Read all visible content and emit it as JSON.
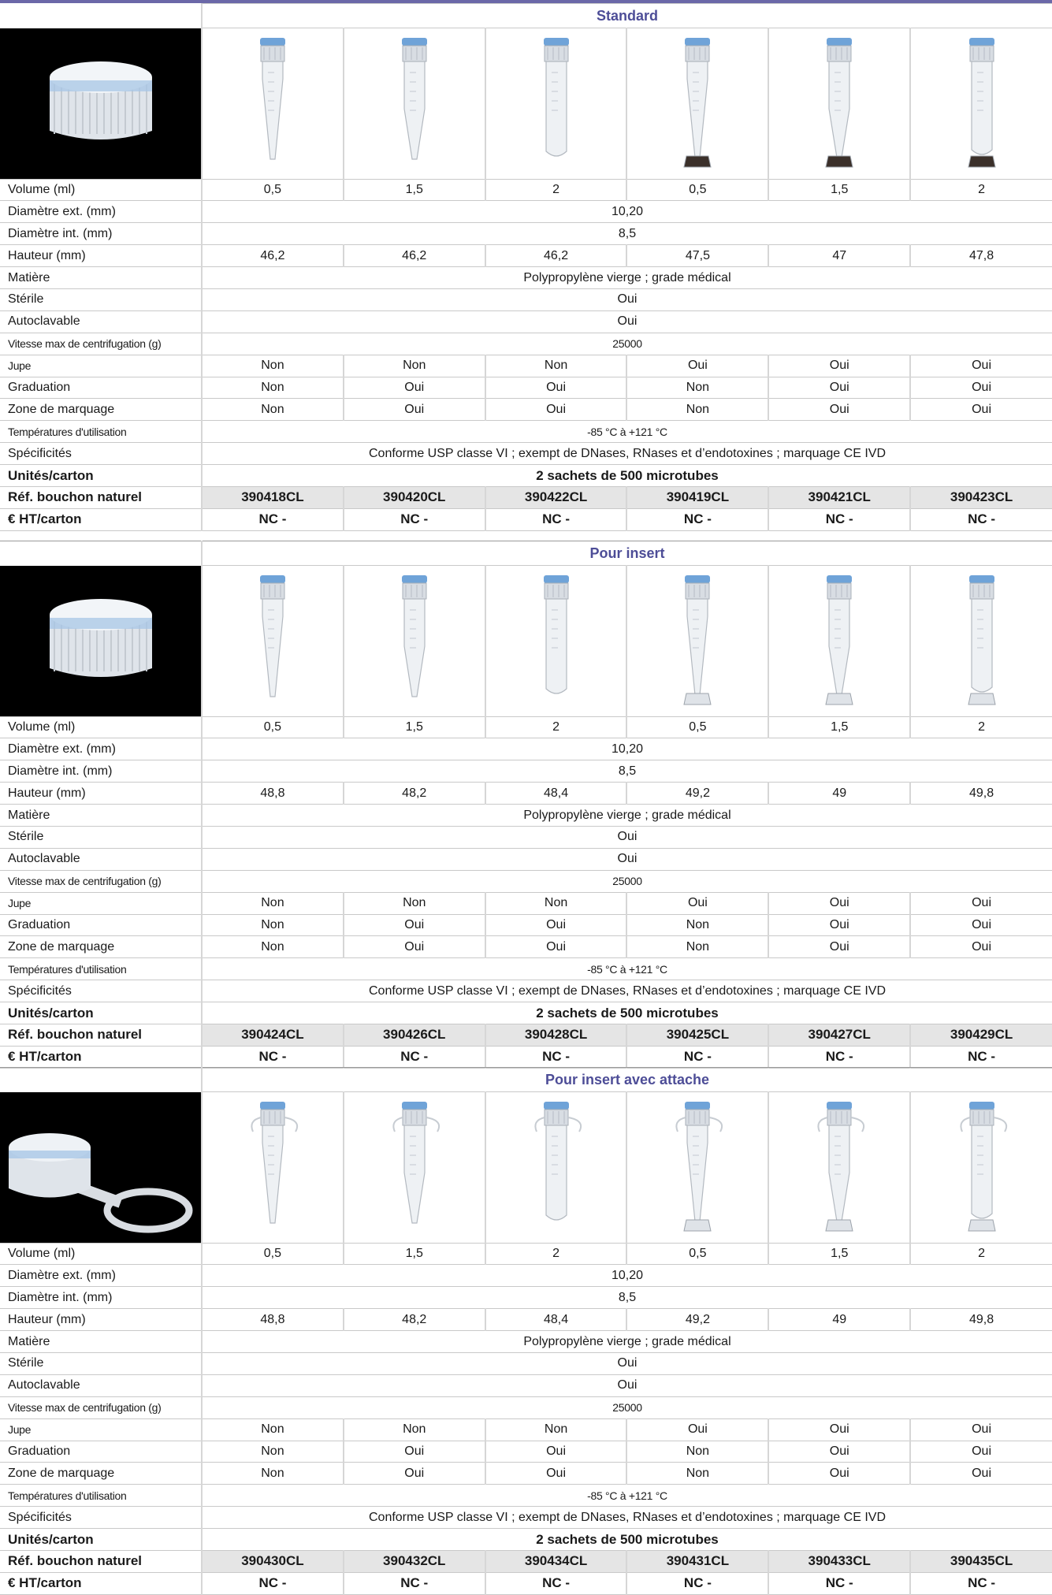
{
  "row_labels": {
    "volume": "Volume (ml)",
    "diam_ext": "Diamètre ext. (mm)",
    "diam_int": "Diamètre int. (mm)",
    "hauteur": "Hauteur (mm)",
    "matiere": "Matière",
    "sterile": "Stérile",
    "autoclavable": "Autoclavable",
    "vitesse": "Vitesse max de centrifugation (g)",
    "jupe": "Jupe",
    "graduation": "Graduation",
    "zone": "Zone de marquage",
    "temperatures": "Températures d'utilisation",
    "specificites": "Spécificités",
    "unites": "Unités/carton",
    "ref": "Réf. bouchon naturel",
    "prix": "€ HT/carton"
  },
  "sections": [
    {
      "title": "Standard",
      "volume": [
        "0,5",
        "1,5",
        "2",
        "0,5",
        "1,5",
        "2"
      ],
      "diam_ext": "10,20",
      "diam_int": "8,5",
      "hauteur": [
        "46,2",
        "46,2",
        "46,2",
        "47,5",
        "47",
        "47,8"
      ],
      "matiere": "Polypropylène vierge ; grade médical",
      "sterile": "Oui",
      "autoclavable": "Oui",
      "vitesse": "25000",
      "jupe": [
        "Non",
        "Non",
        "Non",
        "Oui",
        "Oui",
        "Oui"
      ],
      "graduation": [
        "Non",
        "Oui",
        "Oui",
        "Non",
        "Oui",
        "Oui"
      ],
      "zone": [
        "Non",
        "Oui",
        "Oui",
        "Non",
        "Oui",
        "Oui"
      ],
      "temperatures": "-85 °C à +121 °C",
      "specificites": "Conforme USP classe VI ; exempt de DNases, RNases et d’endotoxines ; marquage CE IVD",
      "unites": "2 sachets de 500 microtubes",
      "ref": [
        "390418CL",
        "390420CL",
        "390422CL",
        "390419CL",
        "390421CL",
        "390423CL"
      ],
      "prix": [
        "NC -",
        "NC -",
        "NC -",
        "NC -",
        "NC -",
        "NC -"
      ]
    },
    {
      "title": "Pour insert",
      "volume": [
        "0,5",
        "1,5",
        "2",
        "0,5",
        "1,5",
        "2"
      ],
      "diam_ext": "10,20",
      "diam_int": "8,5",
      "hauteur": [
        "48,8",
        "48,2",
        "48,4",
        "49,2",
        "49",
        "49,8"
      ],
      "matiere": "Polypropylène vierge ; grade médical",
      "sterile": "Oui",
      "autoclavable": "Oui",
      "vitesse": "25000",
      "jupe": [
        "Non",
        "Non",
        "Non",
        "Oui",
        "Oui",
        "Oui"
      ],
      "graduation": [
        "Non",
        "Oui",
        "Oui",
        "Non",
        "Oui",
        "Oui"
      ],
      "zone": [
        "Non",
        "Oui",
        "Oui",
        "Non",
        "Oui",
        "Oui"
      ],
      "temperatures": "-85 °C à +121 °C",
      "specificites": "Conforme USP classe VI ; exempt de DNases, RNases et d’endotoxines ; marquage CE IVD",
      "unites": "2 sachets de 500 microtubes",
      "ref": [
        "390424CL",
        "390426CL",
        "390428CL",
        "390425CL",
        "390427CL",
        "390429CL"
      ],
      "prix": [
        "NC -",
        "NC -",
        "NC -",
        "NC -",
        "NC -",
        "NC -"
      ]
    },
    {
      "title": "Pour insert avec attache",
      "volume": [
        "0,5",
        "1,5",
        "2",
        "0,5",
        "1,5",
        "2"
      ],
      "diam_ext": "10,20",
      "diam_int": "8,5",
      "hauteur": [
        "48,8",
        "48,2",
        "48,4",
        "49,2",
        "49",
        "49,8"
      ],
      "matiere": "Polypropylène vierge ; grade médical",
      "sterile": "Oui",
      "autoclavable": "Oui",
      "vitesse": "25000",
      "jupe": [
        "Non",
        "Non",
        "Non",
        "Oui",
        "Oui",
        "Oui"
      ],
      "graduation": [
        "Non",
        "Oui",
        "Oui",
        "Non",
        "Oui",
        "Oui"
      ],
      "zone": [
        "Non",
        "Oui",
        "Oui",
        "Non",
        "Oui",
        "Oui"
      ],
      "temperatures": "-85 °C à +121 °C",
      "specificites": "Conforme USP classe VI ; exempt de DNases, RNases et d’endotoxines ; marquage CE IVD",
      "unites": "2 sachets de 500 microtubes",
      "ref": [
        "390430CL",
        "390432CL",
        "390434CL",
        "390431CL",
        "390433CL",
        "390435CL"
      ],
      "prix": [
        "NC -",
        "NC -",
        "NC -",
        "NC -",
        "NC -",
        "NC -"
      ]
    }
  ],
  "colors": {
    "section_title": "#4d4d97",
    "top_rule": "#6b68a8",
    "ref_row_bg": "#e5e5e5",
    "cap_blue": "#6fa3d8"
  }
}
